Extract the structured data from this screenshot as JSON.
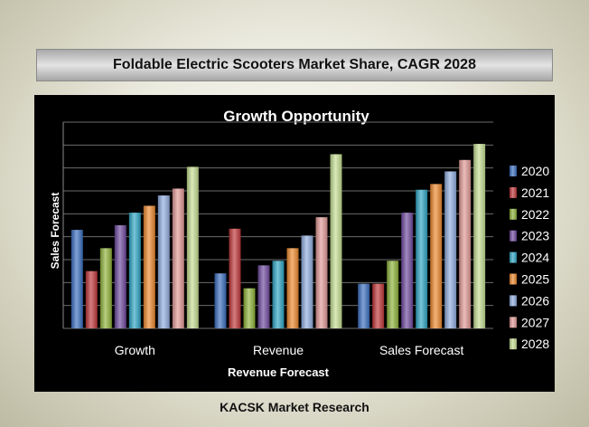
{
  "page_title": "Foldable Electric Scooters Market Share, CAGR 2028",
  "footer": "KACSK Market Research",
  "chart_data": {
    "type": "bar",
    "title": "Growth Opportunity",
    "xlabel": "Revenue Forecast",
    "ylabel": "Sales Forecast",
    "categories": [
      "Growth",
      "Revenue",
      "Sales Forecast"
    ],
    "ylim": [
      0,
      9
    ],
    "grid": true,
    "legend_position": "right",
    "series": [
      {
        "name": "2020",
        "color": "#3b6fbf",
        "values": [
          4.3,
          2.4,
          1.95
        ]
      },
      {
        "name": "2021",
        "color": "#c0373a",
        "values": [
          2.5,
          4.35,
          1.95
        ]
      },
      {
        "name": "2022",
        "color": "#8fb33a",
        "values": [
          3.5,
          1.75,
          2.95
        ]
      },
      {
        "name": "2023",
        "color": "#6f4a9e",
        "values": [
          4.5,
          2.75,
          5.05
        ]
      },
      {
        "name": "2024",
        "color": "#2ea5c4",
        "values": [
          5.05,
          2.95,
          6.05
        ]
      },
      {
        "name": "2025",
        "color": "#ee8a2e",
        "values": [
          5.35,
          3.5,
          6.3
        ]
      },
      {
        "name": "2026",
        "color": "#91aee0",
        "values": [
          5.8,
          4.05,
          6.85
        ]
      },
      {
        "name": "2027",
        "color": "#e19a97",
        "values": [
          6.1,
          4.85,
          7.35
        ]
      },
      {
        "name": "2028",
        "color": "#c6de92",
        "values": [
          7.05,
          7.6,
          8.05
        ]
      }
    ]
  }
}
